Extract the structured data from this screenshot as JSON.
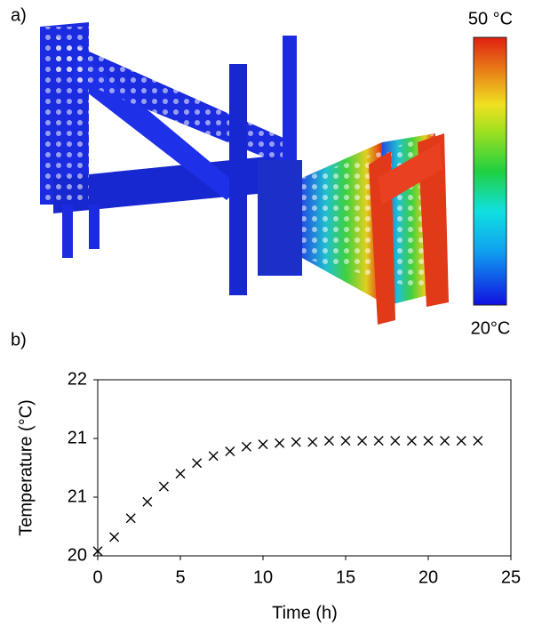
{
  "figure": {
    "panel_a": "a)",
    "panel_b": "b)",
    "colorbar_max": "50 °C",
    "colorbar_min": "20°C"
  },
  "chart_data": {
    "type": "scatter",
    "x_label": "Time (h)",
    "y_label": "Temperature (°C)",
    "x": [
      0,
      1,
      2,
      3,
      4,
      5,
      6,
      7,
      8,
      9,
      10,
      11,
      12,
      13,
      14,
      15,
      16,
      17,
      18,
      19,
      20,
      21,
      22,
      23
    ],
    "series": [
      {
        "color": "#000000",
        "marker": "x",
        "values": [
          20.04,
          20.16,
          20.32,
          20.46,
          20.59,
          20.7,
          20.79,
          20.85,
          20.89,
          20.93,
          20.95,
          20.96,
          20.97,
          20.97,
          20.98,
          20.98,
          20.98,
          20.98,
          20.98,
          20.98,
          20.98,
          20.98,
          20.98,
          20.98
        ]
      }
    ],
    "xlim": [
      0,
      25
    ],
    "xticks": [
      0,
      5,
      10,
      15,
      20,
      25
    ],
    "ylim": [
      20,
      21.5
    ],
    "yticks": [
      20,
      {
        "value": 20.5,
        "label": "21"
      },
      21,
      {
        "value": 21.5,
        "label": "22"
      }
    ],
    "grid": false
  }
}
